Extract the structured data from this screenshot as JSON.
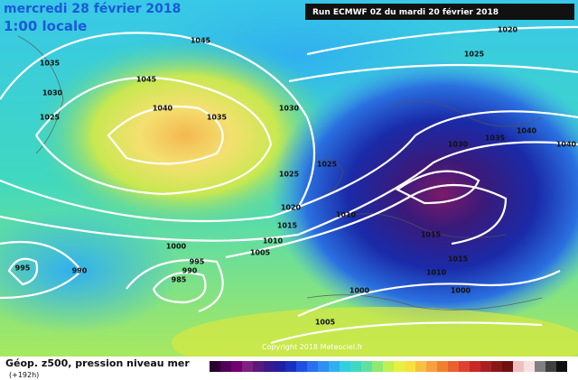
{
  "header": {
    "date": "mercredi 28 février 2018",
    "time": "1:00 locale",
    "run": "Run ECMWF 0Z du mardi 20 février 2018"
  },
  "footer": {
    "title": "Géop. z500, pression niveau mer",
    "lead": "(+192h)",
    "copyright": "Copyright 2018 Meteociel.fr"
  },
  "isobar_labels": [
    "1045",
    "1035",
    "1045",
    "1030",
    "1040",
    "1035",
    "1030",
    "1025",
    "1020",
    "1025",
    "1030",
    "1035",
    "1040",
    "1040",
    "1025",
    "1025",
    "1020",
    "1010",
    "1015",
    "1010",
    "1005",
    "1015",
    "1000",
    "990",
    "995",
    "990",
    "985",
    "995",
    "1015",
    "1010",
    "1000",
    "1000",
    "1005"
  ]
}
